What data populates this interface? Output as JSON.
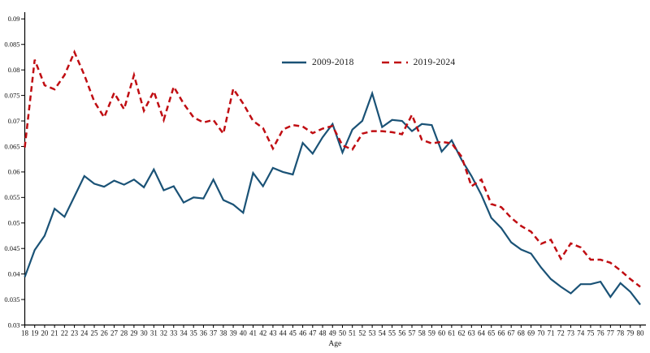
{
  "chart_data": {
    "type": "line",
    "title": "",
    "xlabel": "Age",
    "ylabel": "",
    "ylim": [
      0.03,
      0.09
    ],
    "ytick_step": 0.005,
    "ytick_labels": [
      "0.03",
      "0.035",
      "0.04",
      "0.045",
      "0.05",
      "0.055",
      "0.06",
      "0.065",
      "0.07",
      "0.075",
      "0.08",
      "0.085",
      "0.09"
    ],
    "grid": false,
    "legend_position": "top-center",
    "x": [
      18,
      19,
      20,
      21,
      22,
      23,
      24,
      25,
      26,
      27,
      28,
      29,
      30,
      31,
      32,
      33,
      34,
      35,
      36,
      37,
      38,
      39,
      40,
      41,
      42,
      43,
      44,
      45,
      46,
      47,
      48,
      49,
      50,
      51,
      52,
      53,
      54,
      55,
      56,
      57,
      58,
      59,
      60,
      61,
      62,
      63,
      64,
      65,
      66,
      67,
      68,
      69,
      70,
      71,
      72,
      73,
      74,
      75,
      76,
      77,
      78,
      79,
      80
    ],
    "series": [
      {
        "name": "2009-2018",
        "color": "#1a5276",
        "style": "solid",
        "values": [
          0.0394,
          0.0447,
          0.0475,
          0.0528,
          0.0512,
          0.0552,
          0.0592,
          0.0577,
          0.0571,
          0.0583,
          0.0575,
          0.0585,
          0.057,
          0.0605,
          0.0564,
          0.0572,
          0.054,
          0.055,
          0.0548,
          0.0585,
          0.0545,
          0.0536,
          0.052,
          0.0598,
          0.0572,
          0.0608,
          0.06,
          0.0595,
          0.0657,
          0.0636,
          0.0668,
          0.0694,
          0.0638,
          0.0683,
          0.07,
          0.0754,
          0.0688,
          0.0702,
          0.07,
          0.068,
          0.0694,
          0.0692,
          0.064,
          0.0662,
          0.0624,
          0.0592,
          0.0555,
          0.051,
          0.049,
          0.0462,
          0.0448,
          0.044,
          0.0413,
          0.039,
          0.0375,
          0.0362,
          0.038,
          0.038,
          0.0385,
          0.0355,
          0.0382,
          0.0365,
          0.034
        ]
      },
      {
        "name": "2019-2024",
        "color": "#c00d12",
        "style": "dashed",
        "values": [
          0.0648,
          0.082,
          0.077,
          0.0762,
          0.079,
          0.0835,
          0.079,
          0.0738,
          0.0707,
          0.0755,
          0.0723,
          0.079,
          0.072,
          0.0758,
          0.0702,
          0.0767,
          0.0734,
          0.0707,
          0.0697,
          0.0702,
          0.0675,
          0.0763,
          0.0734,
          0.07,
          0.0686,
          0.0646,
          0.0683,
          0.0692,
          0.0689,
          0.0676,
          0.0685,
          0.069,
          0.0652,
          0.0644,
          0.0675,
          0.068,
          0.068,
          0.0678,
          0.0674,
          0.0712,
          0.0663,
          0.0656,
          0.0659,
          0.0656,
          0.063,
          0.0572,
          0.0585,
          0.0537,
          0.0531,
          0.051,
          0.0494,
          0.0483,
          0.0459,
          0.0467,
          0.043,
          0.046,
          0.0452,
          0.0428,
          0.0428,
          0.0422,
          0.0407,
          0.039,
          0.0375
        ]
      }
    ]
  }
}
